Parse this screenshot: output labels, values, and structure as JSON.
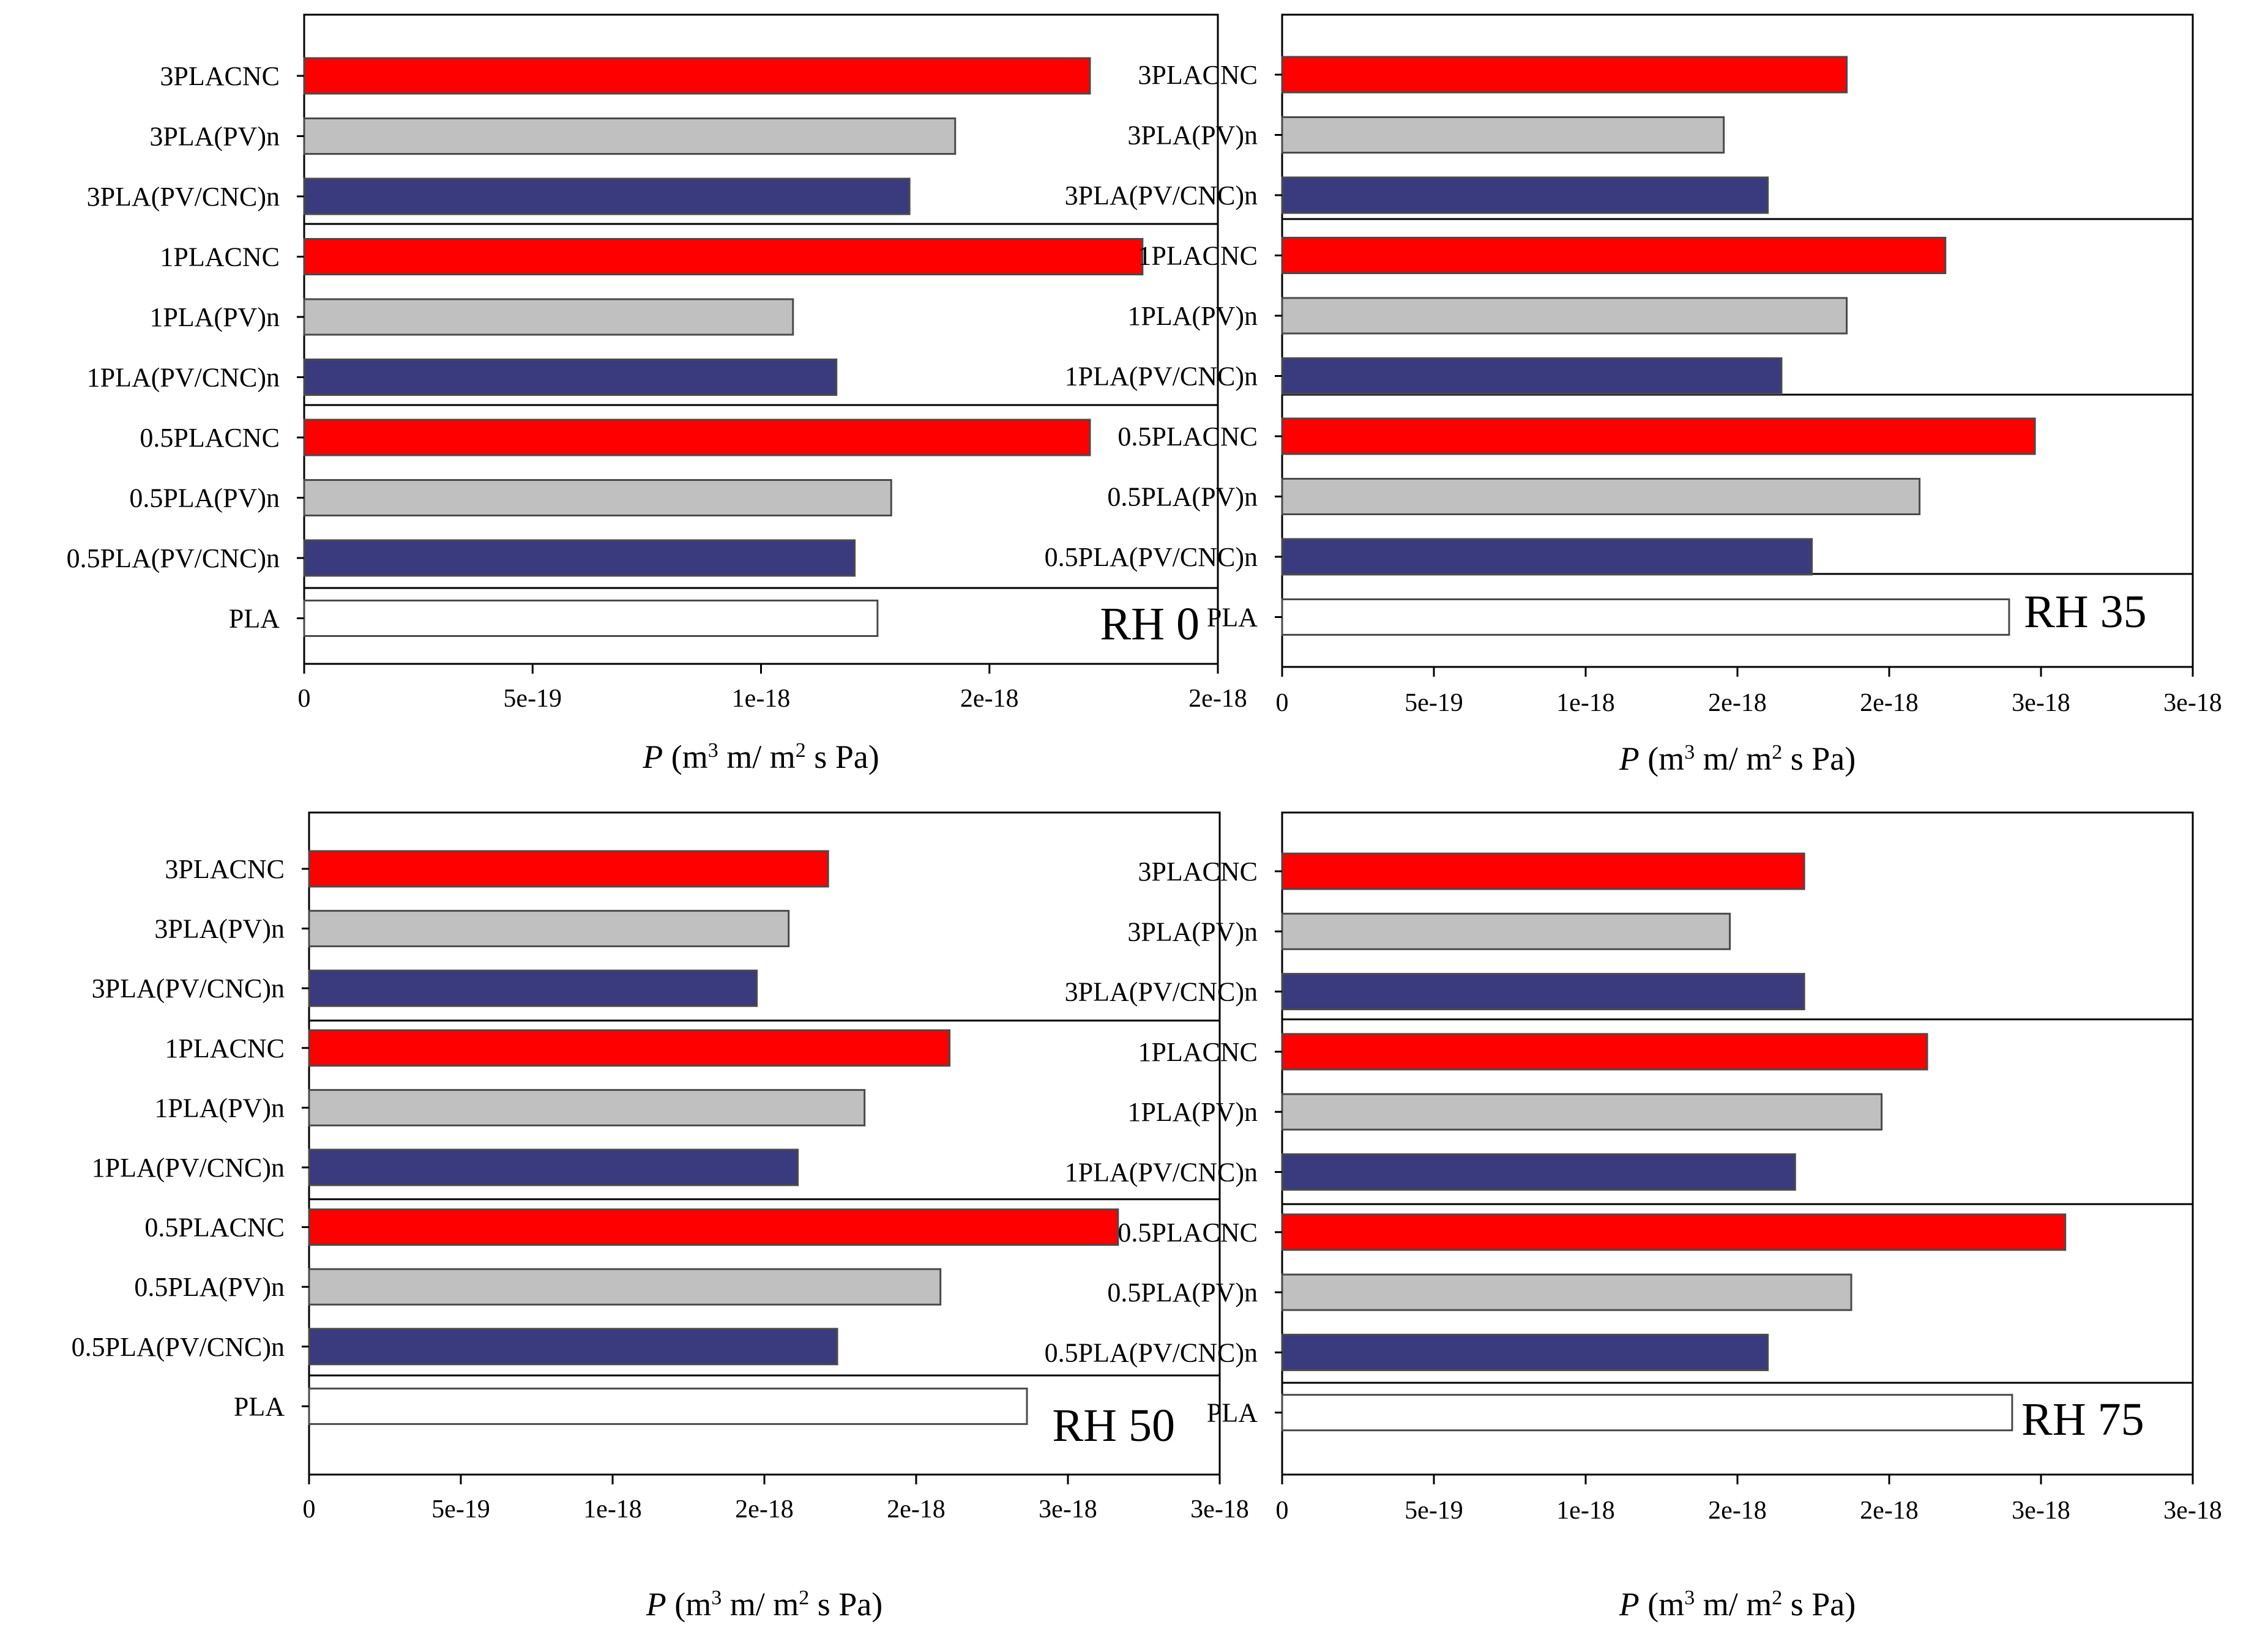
{
  "figure": {
    "colors": {
      "CNC": "#ff0000",
      "PV": "#c0c0c0",
      "PV_CNC": "#3a3a7e",
      "PLA": "#ffffff"
    }
  },
  "chart_data": [
    {
      "type": "bar",
      "orientation": "horizontal",
      "title": "RH 0",
      "xlabel": {
        "italic": "P",
        "pre": " (m",
        "sup1": "3",
        "mid": " m/ m",
        "sup2": "2",
        "post": " s Pa)"
      },
      "xlim": [
        0,
        2e-18
      ],
      "ticks": [
        0,
        5e-19,
        1e-18,
        1.5e-18,
        2e-18
      ],
      "tick_labels": [
        "0",
        "5e-19",
        "1e-18",
        "2e-18",
        "2e-18"
      ],
      "categories": [
        "3PLACNC",
        "3PLA(PV)n",
        "3PLA(PV/CNC)n",
        "1PLACNC",
        "1PLA(PV)n",
        "1PLA(PV/CNC)n",
        "0.5PLACNC",
        "0.5PLA(PV)n",
        "0.5PLA(PV/CNC)n",
        "PLA"
      ],
      "groups": [
        "CNC",
        "PV",
        "PV_CNC",
        "CNC",
        "PV",
        "PV_CNC",
        "CNC",
        "PV",
        "PV_CNC",
        "PLA"
      ],
      "values": [
        1.72e-18,
        1.425e-18,
        1.325e-18,
        1.835e-18,
        1.07e-18,
        1.165e-18,
        1.72e-18,
        1.285e-18,
        1.205e-18,
        1.255e-18
      ]
    },
    {
      "type": "bar",
      "orientation": "horizontal",
      "title": "RH 35",
      "xlabel": {
        "italic": "P",
        "pre": " (m",
        "sup1": "3",
        "mid": " m/ m",
        "sup2": "2",
        "post": " s Pa)"
      },
      "xlim": [
        0,
        3e-18
      ],
      "ticks": [
        0,
        5e-19,
        1e-18,
        1.5e-18,
        2e-18,
        2.5e-18,
        3e-18
      ],
      "tick_labels": [
        "0",
        "5e-19",
        "1e-18",
        "2e-18",
        "2e-18",
        "3e-18",
        "3e-18"
      ],
      "categories": [
        "3PLACNC",
        "3PLA(PV)n",
        "3PLA(PV/CNC)n",
        "1PLACNC",
        "1PLA(PV)n",
        "1PLA(PV/CNC)n",
        "0.5PLACNC",
        "0.5PLA(PV)n",
        "0.5PLA(PV/CNC)n",
        "PLA"
      ],
      "groups": [
        "CNC",
        "PV",
        "PV_CNC",
        "CNC",
        "PV",
        "PV_CNC",
        "CNC",
        "PV",
        "PV_CNC",
        "PLA"
      ],
      "values": [
        1.86e-18,
        1.455e-18,
        1.6e-18,
        2.185e-18,
        1.86e-18,
        1.645e-18,
        2.48e-18,
        2.1e-18,
        1.745e-18,
        2.395e-18
      ]
    },
    {
      "type": "bar",
      "orientation": "horizontal",
      "title": "RH 50",
      "xlabel": {
        "italic": "P",
        "pre": " (m",
        "sup1": "3",
        "mid": " m/ m",
        "sup2": "2",
        "post": " s Pa)"
      },
      "xlim": [
        0,
        3e-18
      ],
      "ticks": [
        0,
        5e-19,
        1e-18,
        1.5e-18,
        2e-18,
        2.5e-18,
        3e-18
      ],
      "tick_labels": [
        "0",
        "5e-19",
        "1e-18",
        "2e-18",
        "2e-18",
        "3e-18",
        "3e-18"
      ],
      "categories": [
        "3PLACNC",
        "3PLA(PV)n",
        "3PLA(PV/CNC)n",
        "1PLACNC",
        "1PLA(PV)n",
        "1PLA(PV/CNC)n",
        "0.5PLACNC",
        "0.5PLA(PV)n",
        "0.5PLA(PV/CNC)n",
        "PLA"
      ],
      "groups": [
        "CNC",
        "PV",
        "PV_CNC",
        "CNC",
        "PV",
        "PV_CNC",
        "CNC",
        "PV",
        "PV_CNC",
        "PLA"
      ],
      "values": [
        1.71e-18,
        1.58e-18,
        1.475e-18,
        2.11e-18,
        1.83e-18,
        1.61e-18,
        2.665e-18,
        2.08e-18,
        1.74e-18,
        2.365e-18
      ]
    },
    {
      "type": "bar",
      "orientation": "horizontal",
      "title": "RH 75",
      "xlabel": {
        "italic": "P",
        "pre": " (m",
        "sup1": "3",
        "mid": " m/ m",
        "sup2": "2",
        "post": " s Pa)"
      },
      "xlim": [
        0,
        3e-18
      ],
      "ticks": [
        0,
        5e-19,
        1e-18,
        1.5e-18,
        2e-18,
        2.5e-18,
        3e-18
      ],
      "tick_labels": [
        "0",
        "5e-19",
        "1e-18",
        "2e-18",
        "2e-18",
        "3e-18",
        "3e-18"
      ],
      "categories": [
        "3PLACNC",
        "3PLA(PV)n",
        "3PLA(PV/CNC)n",
        "1PLACNC",
        "1PLA(PV)n",
        "1PLA(PV/CNC)n",
        "0.5PLACNC",
        "0.5PLA(PV)n",
        "0.5PLA(PV/CNC)n",
        "PLA"
      ],
      "groups": [
        "CNC",
        "PV",
        "PV_CNC",
        "CNC",
        "PV",
        "PV_CNC",
        "CNC",
        "PV",
        "PV_CNC",
        "PLA"
      ],
      "values": [
        1.72e-18,
        1.475e-18,
        1.72e-18,
        2.125e-18,
        1.975e-18,
        1.69e-18,
        2.58e-18,
        1.875e-18,
        1.6e-18,
        2.405e-18
      ]
    }
  ]
}
